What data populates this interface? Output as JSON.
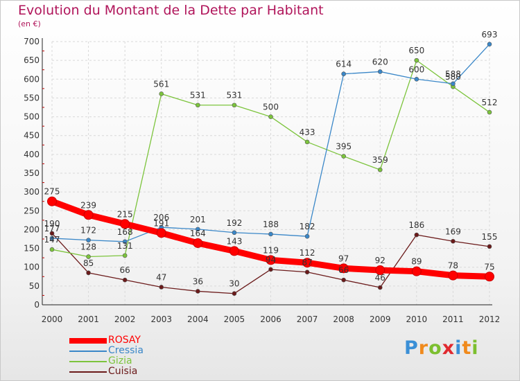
{
  "title": "Evolution du Montant de la Dette par Habitant",
  "unit": "(en €)",
  "logo": {
    "text": "Proxiti",
    "letter_colors": [
      "#3a8fd6",
      "#f08a1c",
      "#7cbf2f",
      "#e0292f",
      "#3a8fd6",
      "#f08a1c",
      "#7cbf2f"
    ]
  },
  "chart_data": {
    "type": "line",
    "x": [
      "2000",
      "2001",
      "2002",
      "2003",
      "2004",
      "2005",
      "2006",
      "2007",
      "2008",
      "2009",
      "2010",
      "2011",
      "2012"
    ],
    "ylim": [
      0,
      700
    ],
    "yticks": [
      0,
      50,
      100,
      150,
      200,
      250,
      300,
      350,
      400,
      450,
      500,
      550,
      600,
      650,
      700
    ],
    "grid": true,
    "legend_position": "bottom-left",
    "series": [
      {
        "name": "ROSAY",
        "color": "#ff0000",
        "values": [
          275,
          239,
          215,
          191,
          164,
          143,
          119,
          112,
          97,
          92,
          89,
          78,
          75
        ]
      },
      {
        "name": "Cressia",
        "color": "#3a87c8",
        "values": [
          177,
          172,
          168,
          206,
          201,
          192,
          188,
          182,
          614,
          620,
          600,
          588,
          693
        ]
      },
      {
        "name": "Gizia",
        "color": "#7cc43c",
        "values": [
          147,
          128,
          131,
          561,
          531,
          531,
          500,
          433,
          395,
          359,
          650,
          580,
          512
        ]
      },
      {
        "name": "Cuisia",
        "color": "#6b1a1a",
        "values": [
          190,
          85,
          66,
          47,
          36,
          30,
          94,
          87,
          66,
          46,
          186,
          169,
          155
        ]
      }
    ]
  }
}
